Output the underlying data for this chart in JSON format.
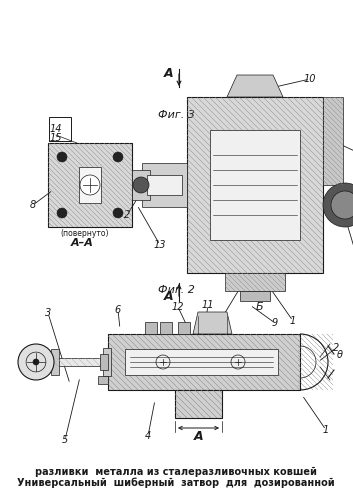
{
  "title_line1": "Универсальный  шиберный  затвор  для  дозированной",
  "title_line2": "разливки  металла из сталеразливочных ковшей",
  "fig2_label": "Фиг. 2",
  "fig3_label": "Фиг. 3",
  "bg_color": "#ffffff",
  "drawing_color": "#1a1a1a",
  "hatch_color": "#444444"
}
